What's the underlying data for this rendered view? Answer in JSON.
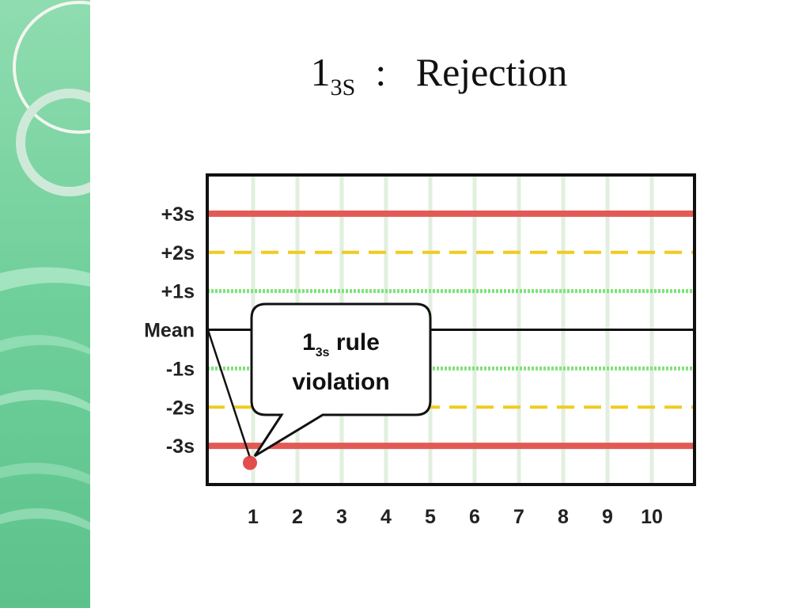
{
  "title": {
    "main": "1",
    "sub": "3S",
    "rest": "  :   Rejection"
  },
  "colors": {
    "sidebar_light": "#8fdcb0",
    "sidebar_dark": "#5cc28c",
    "limit_3s": "#e25a55",
    "limit_2s": "#f0cc1e",
    "limit_1s": "#7ee27a",
    "mean_line": "#111111",
    "grid": "#e2efdf",
    "point": "#e03a3a"
  },
  "chart_data": {
    "type": "scatter",
    "x_categories": [
      "1",
      "2",
      "3",
      "4",
      "5",
      "6",
      "7",
      "8",
      "9",
      "10"
    ],
    "y_tick_labels": [
      "+3s",
      "+2s",
      "+1s",
      "Mean",
      "-1s",
      "-2s",
      "-3s"
    ],
    "y_tick_values": [
      3,
      2,
      1,
      0,
      -1,
      -2,
      -3
    ],
    "ylim": [
      -4,
      4
    ],
    "control_lines": [
      {
        "name": "+3s",
        "value": 3,
        "style": "solid",
        "color": "#e25a55"
      },
      {
        "name": "+2s",
        "value": 2,
        "style": "dashed",
        "color": "#f0cc1e"
      },
      {
        "name": "+1s",
        "value": 1,
        "style": "dotted",
        "color": "#7ee27a"
      },
      {
        "name": "Mean",
        "value": 0,
        "style": "solid",
        "color": "#111111"
      },
      {
        "name": "-1s",
        "value": -1,
        "style": "dotted",
        "color": "#7ee27a"
      },
      {
        "name": "-2s",
        "value": -2,
        "style": "dashed",
        "color": "#f0cc1e"
      },
      {
        "name": "-3s",
        "value": -3,
        "style": "solid",
        "color": "#e25a55"
      }
    ],
    "points": [
      {
        "x": 1,
        "y": -3.4
      }
    ],
    "grid": true,
    "annotation": {
      "line1_main": "1",
      "line1_sub": "3s",
      "line1_rest": " rule",
      "line2": "violation"
    }
  }
}
